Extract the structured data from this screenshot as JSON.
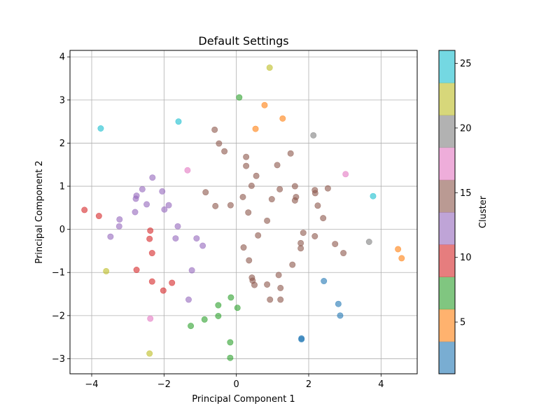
{
  "chart_data": {
    "type": "scatter",
    "title": "Default Settings",
    "xlabel": "Principal Component 1",
    "ylabel": "Principal Component 2",
    "xlim": [
      -4.6,
      5.0
    ],
    "ylim": [
      -3.35,
      4.15
    ],
    "xticks": [
      -4,
      -2,
      0,
      2,
      4
    ],
    "xtick_labels": [
      "−4",
      "−2",
      "0",
      "2",
      "4"
    ],
    "yticks": [
      -3,
      -2,
      -1,
      0,
      1,
      2,
      3,
      4
    ],
    "ytick_labels": [
      "−3",
      "−2",
      "−1",
      "0",
      "1",
      "2",
      "3",
      "4"
    ],
    "grid": true,
    "marker_alpha": 0.6,
    "colorbar": {
      "label": "Cluster",
      "range": [
        1,
        26
      ],
      "ticks": [
        5,
        10,
        15,
        20,
        25
      ],
      "tick_labels": [
        "5",
        "10",
        "15",
        "20",
        "25"
      ],
      "colormap": "tab10",
      "bands": [
        "#1f77b4",
        "#ff7f0e",
        "#2ca02c",
        "#d62728",
        "#9467bd",
        "#8c564b",
        "#e377c2",
        "#7f7f7f",
        "#bcbd22",
        "#17becf"
      ]
    },
    "points": [
      {
        "x": 1.8,
        "y": -2.53,
        "c": 1
      },
      {
        "x": 1.8,
        "y": -2.55,
        "c": 1
      },
      {
        "x": 2.42,
        "y": -1.2,
        "c": 1
      },
      {
        "x": 2.82,
        "y": -1.73,
        "c": 1
      },
      {
        "x": 2.87,
        "y": -2.0,
        "c": 1
      },
      {
        "x": 0.78,
        "y": 2.88,
        "c": 5
      },
      {
        "x": 1.28,
        "y": 2.57,
        "c": 5
      },
      {
        "x": 0.53,
        "y": 2.33,
        "c": 5
      },
      {
        "x": 4.47,
        "y": -0.46,
        "c": 5
      },
      {
        "x": 4.57,
        "y": -0.67,
        "c": 5
      },
      {
        "x": 0.08,
        "y": 3.06,
        "c": 7
      },
      {
        "x": -0.15,
        "y": -1.58,
        "c": 7
      },
      {
        "x": -0.5,
        "y": -1.76,
        "c": 7
      },
      {
        "x": 0.03,
        "y": -1.82,
        "c": 7
      },
      {
        "x": -0.5,
        "y": -2.01,
        "c": 7
      },
      {
        "x": -0.88,
        "y": -2.09,
        "c": 7
      },
      {
        "x": -1.26,
        "y": -2.24,
        "c": 7
      },
      {
        "x": -0.17,
        "y": -2.62,
        "c": 7
      },
      {
        "x": -0.17,
        "y": -2.98,
        "c": 7
      },
      {
        "x": -4.2,
        "y": 0.45,
        "c": 10
      },
      {
        "x": -3.8,
        "y": 0.31,
        "c": 10
      },
      {
        "x": -2.38,
        "y": -0.03,
        "c": 10
      },
      {
        "x": -2.4,
        "y": -0.22,
        "c": 10
      },
      {
        "x": -2.33,
        "y": -0.55,
        "c": 10
      },
      {
        "x": -2.76,
        "y": -0.94,
        "c": 10
      },
      {
        "x": -2.33,
        "y": -1.21,
        "c": 10
      },
      {
        "x": -1.78,
        "y": -1.24,
        "c": 10
      },
      {
        "x": -2.02,
        "y": -1.42,
        "c": 10
      },
      {
        "x": -2.32,
        "y": 1.2,
        "c": 12
      },
      {
        "x": -2.6,
        "y": 0.93,
        "c": 12
      },
      {
        "x": -2.05,
        "y": 0.88,
        "c": 12
      },
      {
        "x": -2.76,
        "y": 0.78,
        "c": 12
      },
      {
        "x": -2.78,
        "y": 0.71,
        "c": 12
      },
      {
        "x": -2.48,
        "y": 0.58,
        "c": 12
      },
      {
        "x": -1.87,
        "y": 0.56,
        "c": 12
      },
      {
        "x": -1.99,
        "y": 0.46,
        "c": 12
      },
      {
        "x": -2.8,
        "y": 0.4,
        "c": 12
      },
      {
        "x": -3.23,
        "y": 0.23,
        "c": 12
      },
      {
        "x": -3.24,
        "y": 0.07,
        "c": 12
      },
      {
        "x": -1.62,
        "y": 0.07,
        "c": 12
      },
      {
        "x": -3.48,
        "y": -0.17,
        "c": 12
      },
      {
        "x": -1.68,
        "y": -0.21,
        "c": 12
      },
      {
        "x": -1.1,
        "y": -0.21,
        "c": 12
      },
      {
        "x": -0.93,
        "y": -0.38,
        "c": 12
      },
      {
        "x": -1.23,
        "y": -0.95,
        "c": 12
      },
      {
        "x": -1.32,
        "y": -1.63,
        "c": 12
      },
      {
        "x": -0.6,
        "y": 2.31,
        "c": 15
      },
      {
        "x": -0.48,
        "y": 1.99,
        "c": 15
      },
      {
        "x": -0.33,
        "y": 1.81,
        "c": 15
      },
      {
        "x": 1.5,
        "y": 1.76,
        "c": 15
      },
      {
        "x": 0.27,
        "y": 1.68,
        "c": 15
      },
      {
        "x": 1.13,
        "y": 1.49,
        "c": 15
      },
      {
        "x": 0.27,
        "y": 1.47,
        "c": 15
      },
      {
        "x": 0.55,
        "y": 1.24,
        "c": 15
      },
      {
        "x": 0.42,
        "y": 1.01,
        "c": 15
      },
      {
        "x": 1.62,
        "y": 1.0,
        "c": 15
      },
      {
        "x": 1.2,
        "y": 0.93,
        "c": 15
      },
      {
        "x": 2.53,
        "y": 0.95,
        "c": 15
      },
      {
        "x": 2.17,
        "y": 0.91,
        "c": 15
      },
      {
        "x": -0.85,
        "y": 0.86,
        "c": 15
      },
      {
        "x": 2.18,
        "y": 0.84,
        "c": 15
      },
      {
        "x": 0.18,
        "y": 0.75,
        "c": 15
      },
      {
        "x": 1.65,
        "y": 0.75,
        "c": 15
      },
      {
        "x": 0.98,
        "y": 0.7,
        "c": 15
      },
      {
        "x": 1.62,
        "y": 0.67,
        "c": 15
      },
      {
        "x": -0.16,
        "y": 0.56,
        "c": 15
      },
      {
        "x": -0.58,
        "y": 0.54,
        "c": 15
      },
      {
        "x": 2.25,
        "y": 0.55,
        "c": 15
      },
      {
        "x": 0.33,
        "y": 0.39,
        "c": 15
      },
      {
        "x": 2.4,
        "y": 0.26,
        "c": 15
      },
      {
        "x": 0.85,
        "y": 0.2,
        "c": 15
      },
      {
        "x": 1.85,
        "y": -0.08,
        "c": 15
      },
      {
        "x": 0.6,
        "y": -0.14,
        "c": 15
      },
      {
        "x": 2.17,
        "y": -0.16,
        "c": 15
      },
      {
        "x": 1.78,
        "y": -0.32,
        "c": 15
      },
      {
        "x": 2.73,
        "y": -0.34,
        "c": 15
      },
      {
        "x": 0.2,
        "y": -0.42,
        "c": 15
      },
      {
        "x": 1.78,
        "y": -0.44,
        "c": 15
      },
      {
        "x": 2.96,
        "y": -0.55,
        "c": 15
      },
      {
        "x": 0.35,
        "y": -0.72,
        "c": 15
      },
      {
        "x": 1.55,
        "y": -0.82,
        "c": 15
      },
      {
        "x": 1.17,
        "y": -1.06,
        "c": 15
      },
      {
        "x": 0.43,
        "y": -1.12,
        "c": 15
      },
      {
        "x": 0.45,
        "y": -1.19,
        "c": 15
      },
      {
        "x": 0.85,
        "y": -1.28,
        "c": 15
      },
      {
        "x": 0.5,
        "y": -1.29,
        "c": 15
      },
      {
        "x": 1.22,
        "y": -1.36,
        "c": 15
      },
      {
        "x": 0.93,
        "y": -1.63,
        "c": 15
      },
      {
        "x": 1.22,
        "y": -1.63,
        "c": 15
      },
      {
        "x": -1.35,
        "y": 1.37,
        "c": 18
      },
      {
        "x": 3.02,
        "y": 1.28,
        "c": 18
      },
      {
        "x": -2.38,
        "y": -2.07,
        "c": 18
      },
      {
        "x": 2.13,
        "y": 2.18,
        "c": 20
      },
      {
        "x": 3.67,
        "y": -0.29,
        "c": 20
      },
      {
        "x": 0.92,
        "y": 3.75,
        "c": 22
      },
      {
        "x": -3.6,
        "y": -0.97,
        "c": 22
      },
      {
        "x": -2.4,
        "y": -2.88,
        "c": 22
      },
      {
        "x": -3.75,
        "y": 2.34,
        "c": 25
      },
      {
        "x": -1.6,
        "y": 2.5,
        "c": 25
      },
      {
        "x": 3.78,
        "y": 0.77,
        "c": 25
      }
    ]
  }
}
